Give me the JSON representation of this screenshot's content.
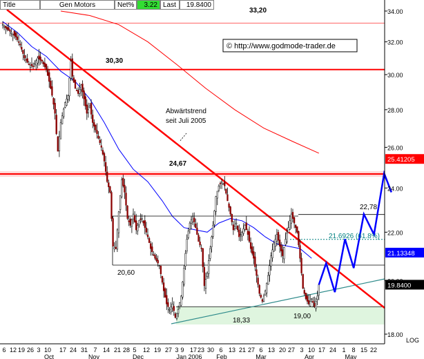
{
  "header": {
    "title_label": "Title",
    "name": "Gen Motors",
    "change_label": "Net%",
    "change_value": "3.22",
    "last_label": "Last",
    "last_value": "19.8400"
  },
  "copyright": "© http://www.godmode-trader.de",
  "chart_data": {
    "type": "candlestick",
    "title": "Gen Motors",
    "ylim": [
      18.0,
      34.0
    ],
    "yticks": [
      34.0,
      32.0,
      30.0,
      28.0,
      26.0,
      24.0,
      22.0,
      20.0,
      18.0
    ],
    "ytick_labels": [
      "34.00",
      "32.00",
      "30.00",
      "28.00",
      "26.00",
      "24.00",
      "22.00",
      "20.00",
      "18.00"
    ],
    "y_scale_label": "LOG",
    "x_day_labels": [
      "6",
      "12",
      "19",
      "26",
      "3",
      "10",
      "17",
      "24",
      "31",
      "7",
      "14",
      "21",
      "28",
      "5",
      "12",
      "19",
      "27",
      "3",
      "9",
      "17",
      "23",
      "30",
      "6",
      "13",
      "21",
      "27",
      "6",
      "13",
      "20",
      "27",
      "3",
      "10",
      "17",
      "24",
      "1",
      "8",
      "15",
      "22"
    ],
    "x_month_labels": [
      "Oct",
      "Nov",
      "Dec",
      "Jan 2006",
      "Feb",
      "Mar",
      "Apr",
      "May"
    ],
    "price_series": {
      "name": "Gen Motors",
      "close_start": 33.1,
      "close_end": 19.84,
      "anchors": [
        [
          0,
          33.1
        ],
        [
          3,
          32.8
        ],
        [
          6,
          32.6
        ],
        [
          9,
          32.3
        ],
        [
          12,
          31.8
        ],
        [
          15,
          31.0
        ],
        [
          18,
          30.6
        ],
        [
          21,
          30.5
        ],
        [
          24,
          31.0
        ],
        [
          27,
          30.8
        ],
        [
          30,
          30.3
        ],
        [
          32,
          29.6
        ],
        [
          34,
          28.8
        ],
        [
          36,
          27.8
        ],
        [
          37,
          26.7
        ],
        [
          38,
          25.8
        ],
        [
          40,
          27.3
        ],
        [
          43,
          28.4
        ],
        [
          45,
          28.8
        ],
        [
          47,
          30.8
        ],
        [
          48,
          29.9
        ],
        [
          50,
          29.2
        ],
        [
          52,
          28.9
        ],
        [
          54,
          29.4
        ],
        [
          56,
          28.6
        ],
        [
          58,
          27.8
        ],
        [
          60,
          28.2
        ],
        [
          62,
          27.3
        ],
        [
          65,
          26.7
        ],
        [
          68,
          26.0
        ],
        [
          70,
          25.3
        ],
        [
          72,
          24.3
        ],
        [
          74,
          23.8
        ],
        [
          76,
          21.4
        ],
        [
          78,
          21.3
        ],
        [
          80,
          22.9
        ],
        [
          82,
          24.4
        ],
        [
          84,
          23.8
        ],
        [
          86,
          22.6
        ],
        [
          88,
          22.3
        ],
        [
          90,
          22.8
        ],
        [
          92,
          22.1
        ],
        [
          94,
          22.5
        ],
        [
          96,
          22.6
        ],
        [
          98,
          22.2
        ],
        [
          100,
          21.8
        ],
        [
          102,
          21.3
        ],
        [
          105,
          20.9
        ],
        [
          108,
          20.6
        ],
        [
          111,
          19.6
        ],
        [
          113,
          19.1
        ],
        [
          115,
          18.9
        ],
        [
          117,
          19.1
        ],
        [
          119,
          18.6
        ],
        [
          121,
          18.9
        ],
        [
          123,
          19.4
        ],
        [
          125,
          20.5
        ],
        [
          127,
          21.7
        ],
        [
          129,
          22.4
        ],
        [
          131,
          22.7
        ],
        [
          133,
          22.2
        ],
        [
          135,
          21.6
        ],
        [
          137,
          21.3
        ],
        [
          139,
          19.8
        ],
        [
          141,
          20.3
        ],
        [
          143,
          21.3
        ],
        [
          145,
          22.3
        ],
        [
          147,
          23.6
        ],
        [
          149,
          24.1
        ],
        [
          151,
          24.3
        ],
        [
          153,
          24.1
        ],
        [
          155,
          23.4
        ],
        [
          157,
          22.8
        ],
        [
          159,
          22.1
        ],
        [
          161,
          22.4
        ],
        [
          163,
          21.8
        ],
        [
          165,
          22.0
        ],
        [
          167,
          22.3
        ],
        [
          169,
          21.9
        ],
        [
          171,
          21.3
        ],
        [
          173,
          20.9
        ],
        [
          175,
          20.2
        ],
        [
          177,
          19.5
        ],
        [
          179,
          19.2
        ],
        [
          181,
          19.6
        ],
        [
          183,
          20.2
        ],
        [
          185,
          21.0
        ],
        [
          187,
          21.5
        ],
        [
          189,
          21.9
        ],
        [
          191,
          21.4
        ],
        [
          193,
          21.0
        ],
        [
          195,
          21.7
        ],
        [
          197,
          22.2
        ],
        [
          199,
          22.8
        ],
        [
          201,
          22.4
        ],
        [
          203,
          22.0
        ],
        [
          205,
          20.9
        ],
        [
          207,
          19.7
        ],
        [
          209,
          19.3
        ],
        [
          211,
          19.1
        ],
        [
          213,
          19.3
        ],
        [
          215,
          19.0
        ],
        [
          217,
          19.4
        ],
        [
          218,
          19.84
        ]
      ]
    },
    "ma_short": {
      "name": "",
      "color": "#0000ff",
      "points": [
        [
          0,
          33.3
        ],
        [
          10,
          32.6
        ],
        [
          20,
          31.7
        ],
        [
          30,
          31.1
        ],
        [
          40,
          30.2
        ],
        [
          50,
          29.6
        ],
        [
          60,
          28.6
        ],
        [
          70,
          27.3
        ],
        [
          80,
          25.9
        ],
        [
          90,
          24.9
        ],
        [
          100,
          24.3
        ],
        [
          110,
          23.4
        ],
        [
          117,
          22.7
        ],
        [
          125,
          22.2
        ],
        [
          133,
          22.1
        ],
        [
          141,
          22.0
        ],
        [
          149,
          22.4
        ],
        [
          157,
          22.6
        ],
        [
          165,
          22.5
        ],
        [
          173,
          22.2
        ],
        [
          181,
          21.8
        ],
        [
          189,
          21.5
        ],
        [
          197,
          21.4
        ],
        [
          205,
          21.3
        ],
        [
          213,
          20.9
        ]
      ]
    },
    "ma_long": {
      "name": "",
      "color": "#ff0000",
      "points": [
        [
          40,
          34.0
        ],
        [
          60,
          33.7
        ],
        [
          80,
          33.1
        ],
        [
          100,
          32.0
        ],
        [
          120,
          30.6
        ],
        [
          140,
          29.2
        ],
        [
          160,
          28.0
        ],
        [
          180,
          27.0
        ],
        [
          200,
          26.3
        ],
        [
          218,
          25.7
        ]
      ]
    },
    "horizontal_levels": [
      {
        "value": 33.2,
        "label": "33,20",
        "color": "#ff6666"
      },
      {
        "value": 30.3,
        "label": "30,30",
        "color": "#ff0000"
      },
      {
        "value": 24.67,
        "label": "24,67",
        "color": "#ff0000"
      },
      {
        "value": 22.78,
        "label": "22,78",
        "color": "#000000"
      },
      {
        "value": 20.6,
        "label": "20,60",
        "color": "#000000"
      },
      {
        "value": 19.0,
        "label": "19,00",
        "color": "#000000"
      },
      {
        "value": 18.33,
        "label": "18,33",
        "color": "#000000"
      }
    ],
    "fib_level": {
      "value": 21.6926,
      "label": "21.6926 (61.8%)",
      "color": "#008080"
    },
    "downtrend_label": [
      "Abwärtstrend",
      "seit Juli 2005"
    ],
    "value_tags": [
      {
        "value": 25.41205,
        "label": "25.41205",
        "color": "#ff0000"
      },
      {
        "value": 21.13348,
        "label": "21.13348",
        "color": "#0000ff"
      },
      {
        "value": 19.84,
        "label": "19.8400",
        "color": "#000000"
      }
    ],
    "forecast": {
      "color": "#0000ff",
      "points": [
        [
          218,
          19.84
        ],
        [
          223,
          20.7
        ],
        [
          229,
          19.55
        ],
        [
          236,
          21.7
        ],
        [
          242,
          20.5
        ],
        [
          249,
          22.8
        ],
        [
          256,
          21.9
        ],
        [
          263,
          24.7
        ],
        [
          268,
          23.8
        ]
      ]
    }
  }
}
